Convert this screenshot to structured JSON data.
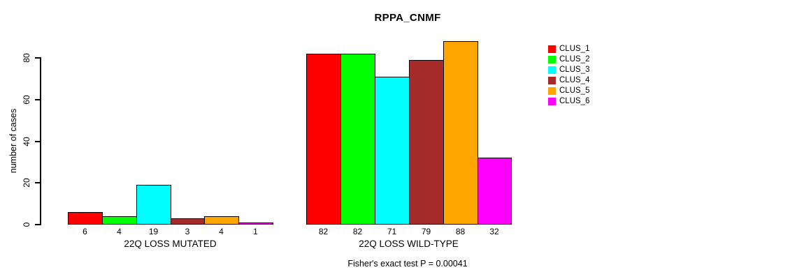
{
  "chart_data": {
    "type": "bar",
    "title": "RPPA_CNMF",
    "ylabel": "number of cases",
    "xlabel": "",
    "categories": [
      "22Q LOSS MUTATED",
      "22Q LOSS WILD-TYPE"
    ],
    "series": [
      {
        "name": "CLUS_1",
        "color": "#FF0000",
        "values": [
          6,
          82
        ]
      },
      {
        "name": "CLUS_2",
        "color": "#00FF00",
        "values": [
          4,
          82
        ]
      },
      {
        "name": "CLUS_3",
        "color": "#00FFFF",
        "values": [
          19,
          71
        ]
      },
      {
        "name": "CLUS_4",
        "color": "#A52A2A",
        "values": [
          3,
          79
        ]
      },
      {
        "name": "CLUS_5",
        "color": "#FFA500",
        "values": [
          4,
          88
        ]
      },
      {
        "name": "CLUS_6",
        "color": "#FF00FF",
        "values": [
          1,
          32
        ]
      }
    ],
    "yticks": [
      0,
      20,
      40,
      60,
      80
    ],
    "ylim": [
      0,
      88
    ],
    "grid": false,
    "bar_value_labels": true,
    "bar_outline_color": "#000000",
    "legend_position": "top-right",
    "footer": "Fisher's exact test P = 0.00041"
  }
}
